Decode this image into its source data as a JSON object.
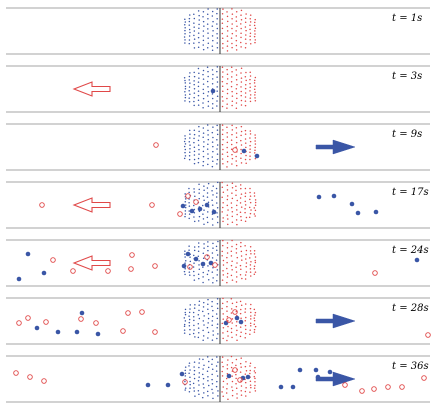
{
  "colors": {
    "blue": "#3a56a6",
    "red": "#e04848",
    "rule": "#888888",
    "axis": "#000000"
  },
  "panels": [
    {
      "time_label": "t = 1s",
      "arrow": null,
      "blue_particles": [],
      "red_particles": []
    },
    {
      "time_label": "t = 3s",
      "arrow": "left-outline",
      "blue_particles": [
        [
          213,
          91
        ]
      ],
      "red_particles": []
    },
    {
      "time_label": "t = 9s",
      "arrow": "right-filled",
      "blue_particles": [
        [
          244,
          151
        ],
        [
          257,
          156
        ]
      ],
      "red_particles": [
        [
          156,
          145
        ],
        [
          235,
          150
        ]
      ]
    },
    {
      "time_label": "t = 17s",
      "arrow": "left-outline",
      "blue_particles": [
        [
          319,
          197
        ],
        [
          334,
          196
        ],
        [
          352,
          204
        ],
        [
          358,
          213
        ],
        [
          376,
          212
        ],
        [
          192,
          211
        ],
        [
          200,
          209
        ],
        [
          207,
          205
        ],
        [
          214,
          212
        ],
        [
          183,
          206
        ]
      ],
      "red_particles": [
        [
          42,
          205
        ],
        [
          152,
          205
        ],
        [
          180,
          214
        ],
        [
          188,
          196
        ],
        [
          196,
          202
        ]
      ]
    },
    {
      "time_label": "t = 24s",
      "arrow": "left-outline",
      "blue_particles": [
        [
          28,
          254
        ],
        [
          44,
          273
        ],
        [
          19,
          279
        ],
        [
          417,
          260
        ],
        [
          184,
          266
        ],
        [
          196,
          259
        ],
        [
          203,
          264
        ],
        [
          211,
          263
        ],
        [
          188,
          254
        ]
      ],
      "red_particles": [
        [
          53,
          260
        ],
        [
          73,
          271
        ],
        [
          108,
          271
        ],
        [
          131,
          269
        ],
        [
          132,
          255
        ],
        [
          155,
          266
        ],
        [
          375,
          273
        ],
        [
          190,
          267
        ],
        [
          207,
          257
        ],
        [
          215,
          265
        ]
      ]
    },
    {
      "time_label": "t = 28s",
      "arrow": "right-filled",
      "blue_particles": [
        [
          37,
          328
        ],
        [
          58,
          332
        ],
        [
          77,
          332
        ],
        [
          82,
          313
        ],
        [
          98,
          334
        ],
        [
          226,
          323
        ],
        [
          237,
          318
        ],
        [
          241,
          322
        ]
      ],
      "red_particles": [
        [
          19,
          323
        ],
        [
          28,
          318
        ],
        [
          46,
          322
        ],
        [
          81,
          319
        ],
        [
          96,
          323
        ],
        [
          123,
          331
        ],
        [
          128,
          313
        ],
        [
          142,
          312
        ],
        [
          155,
          332
        ],
        [
          428,
          335
        ],
        [
          229,
          320
        ],
        [
          235,
          312
        ]
      ]
    },
    {
      "time_label": "t = 36s",
      "arrow": "right-filled",
      "blue_particles": [
        [
          148,
          385
        ],
        [
          168,
          385
        ],
        [
          182,
          374
        ],
        [
          281,
          387
        ],
        [
          293,
          387
        ],
        [
          300,
          370
        ],
        [
          316,
          370
        ],
        [
          318,
          377
        ],
        [
          330,
          372
        ],
        [
          229,
          376
        ],
        [
          243,
          378
        ],
        [
          248,
          377
        ]
      ],
      "red_particles": [
        [
          16,
          373
        ],
        [
          30,
          377
        ],
        [
          44,
          381
        ],
        [
          185,
          382
        ],
        [
          345,
          385
        ],
        [
          362,
          391
        ],
        [
          374,
          389
        ],
        [
          388,
          387
        ],
        [
          402,
          387
        ],
        [
          424,
          378
        ],
        [
          235,
          370
        ],
        [
          240,
          380
        ]
      ]
    }
  ]
}
